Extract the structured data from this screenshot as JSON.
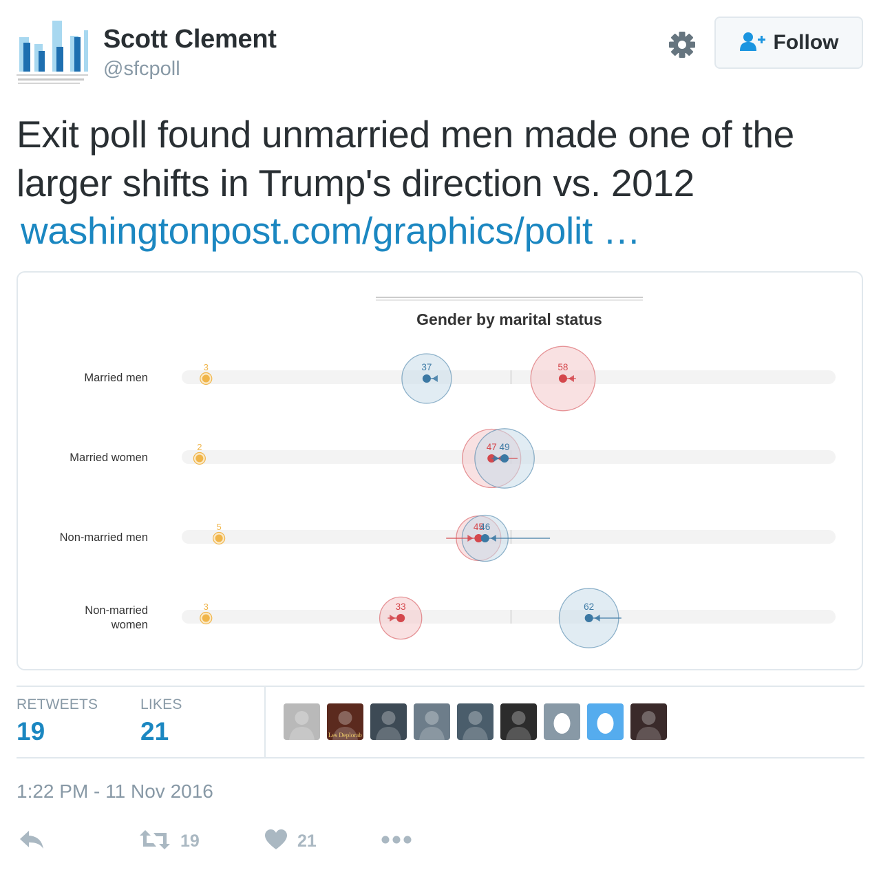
{
  "user": {
    "name": "Scott Clement",
    "handle": "@sfcpoll"
  },
  "header": {
    "settings_icon": "gear-icon",
    "follow_icon": "add-user-icon",
    "follow_label": "Follow"
  },
  "tweet": {
    "line1": "Exit poll found unmarried men made one of the",
    "line2": "larger shifts in Trump's direction vs. 2012",
    "link_text": "washingtonpost.com/graphics/polit …"
  },
  "chart_data": {
    "type": "scatter",
    "title": "Gender by marital status",
    "colors": {
      "democrat": "#3b78a3",
      "republican": "#d4474c",
      "other": "#f0b54a",
      "track": "#f3f3f3"
    },
    "xlim": [
      0,
      100
    ],
    "rows": [
      {
        "label": "Married men",
        "other": 3,
        "dem": 37,
        "rep": 58,
        "dem_2012": 38,
        "rep_2012": 60,
        "dem_size": 1.0,
        "rep_size": 1.3
      },
      {
        "label": "Married women",
        "other": 2,
        "dem": 49,
        "rep": 47,
        "dem_2012": 47,
        "rep_2012": 51,
        "dem_size": 1.2,
        "rep_size": 1.18
      },
      {
        "label": "Non-married men",
        "other": 5,
        "dem": 46,
        "rep": 45,
        "dem_2012": 56,
        "rep_2012": 40,
        "dem_size": 0.93,
        "rep_size": 0.9
      },
      {
        "label_lines": [
          "Non-married",
          "women"
        ],
        "other": 3,
        "dem": 62,
        "rep": 33,
        "dem_2012": 67,
        "rep_2012": 31,
        "dem_size": 1.2,
        "rep_size": 0.85
      }
    ]
  },
  "stats": {
    "retweets_label": "RETWEETS",
    "retweets_value": "19",
    "likes_label": "LIKES",
    "likes_value": "21",
    "likers": [
      {
        "name": "liker-1",
        "color": "#b9b9b9"
      },
      {
        "name": "liker-2",
        "color": "#5b2a1e",
        "caption": "Les Deplorab"
      },
      {
        "name": "liker-3",
        "color": "#3d4a55"
      },
      {
        "name": "liker-4",
        "color": "#6d7d8a"
      },
      {
        "name": "liker-5",
        "color": "#4a5d6b"
      },
      {
        "name": "liker-6",
        "color": "#2c2c2c"
      },
      {
        "name": "liker-7",
        "color": "#8899a6",
        "egg": true
      },
      {
        "name": "liker-8",
        "color": "#55acee",
        "egg": true
      },
      {
        "name": "liker-9",
        "color": "#3a2a2a"
      }
    ]
  },
  "timestamp": "1:22 PM - 11 Nov 2016",
  "actions": {
    "reply_icon": "reply-icon",
    "retweet_icon": "retweet-icon",
    "retweet_count": "19",
    "like_icon": "heart-icon",
    "like_count": "21",
    "more_icon": "more-icon"
  }
}
